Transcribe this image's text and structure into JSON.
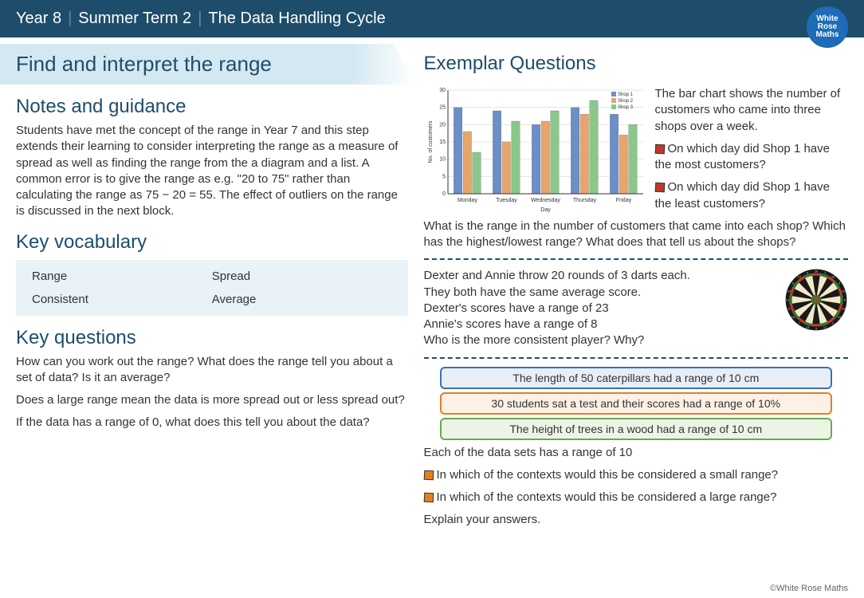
{
  "header": {
    "year": "Year 8",
    "term": "Summer Term 2",
    "topic": "The Data Handling Cycle"
  },
  "logo": {
    "line1": "White",
    "line2": "Rose",
    "line3": "Maths"
  },
  "title": "Find and interpret the range",
  "left": {
    "notes_heading": "Notes and guidance",
    "notes_body": "Students have met the concept of the range in Year 7 and this step extends their learning to consider interpreting the range as a measure of spread as well as finding the range from the a diagram and a list. A common error is to give the range as e.g. \"20 to 75\" rather than calculating the range as 75 − 20 = 55. The effect of outliers on the range is discussed in the next block.",
    "vocab_heading": "Key vocabulary",
    "vocab": [
      [
        "Range",
        "Spread"
      ],
      [
        "Consistent",
        "Average"
      ]
    ],
    "kq_heading": "Key questions",
    "kq1": "How can you work out the range? What does the range tell you about a set of data? Is it an average?",
    "kq2": "Does a large range mean the data is more spread out or less spread out?",
    "kq3": "If the data has a range of 0, what does this tell you about the data?"
  },
  "right": {
    "heading": "Exemplar Questions",
    "chart": {
      "type": "bar",
      "categories": [
        "Monday",
        "Tuesday",
        "Wednesday",
        "Thursday",
        "Friday"
      ],
      "series": [
        {
          "name": "Shop 1",
          "color": "#6b8fc7",
          "values": [
            25,
            24,
            20,
            25,
            23
          ]
        },
        {
          "name": "Shop 2",
          "color": "#e8a56b",
          "values": [
            18,
            15,
            21,
            23,
            17
          ]
        },
        {
          "name": "Shop 3",
          "color": "#8bc78b",
          "values": [
            12,
            21,
            24,
            27,
            20
          ]
        }
      ],
      "ylim": [
        0,
        30
      ],
      "ytick_step": 5,
      "xlabel": "Day",
      "ylabel": "No. of customers",
      "bg": "#ffffff",
      "grid": "#cccccc",
      "axis_fontsize": 7
    },
    "chart_intro": "The bar chart shows the number of customers who came into three shops over a week.",
    "chart_q1": "On which day did Shop 1 have the most customers?",
    "chart_q2": "On which day did Shop 1 have the least customers?",
    "chart_followup": "What is the range in the number of customers that came into each shop? Which has the highest/lowest range? What does that tell us about the shops?",
    "darts_l1": "Dexter and Annie throw 20 rounds of 3 darts each.",
    "darts_l2": "They both have the same average score.",
    "darts_l3": "Dexter's scores have a range of 23",
    "darts_l4": "Annie's scores have a range of 8",
    "darts_l5": "Who is the more consistent player? Why?",
    "rb1": "The length of 50 caterpillars had a range of 10 cm",
    "rb2": "30 students sat a test and their scores had a range of 10%",
    "rb3": "The height of trees in a wood had a range of 10 cm",
    "context_intro": "Each of the data sets has a range of 10",
    "context_q1": "In which of the contexts would this be considered a small range?",
    "context_q2": "In which of the contexts would this be considered a large range?",
    "context_q3": "Explain your answers."
  },
  "footer": "©White Rose Maths"
}
